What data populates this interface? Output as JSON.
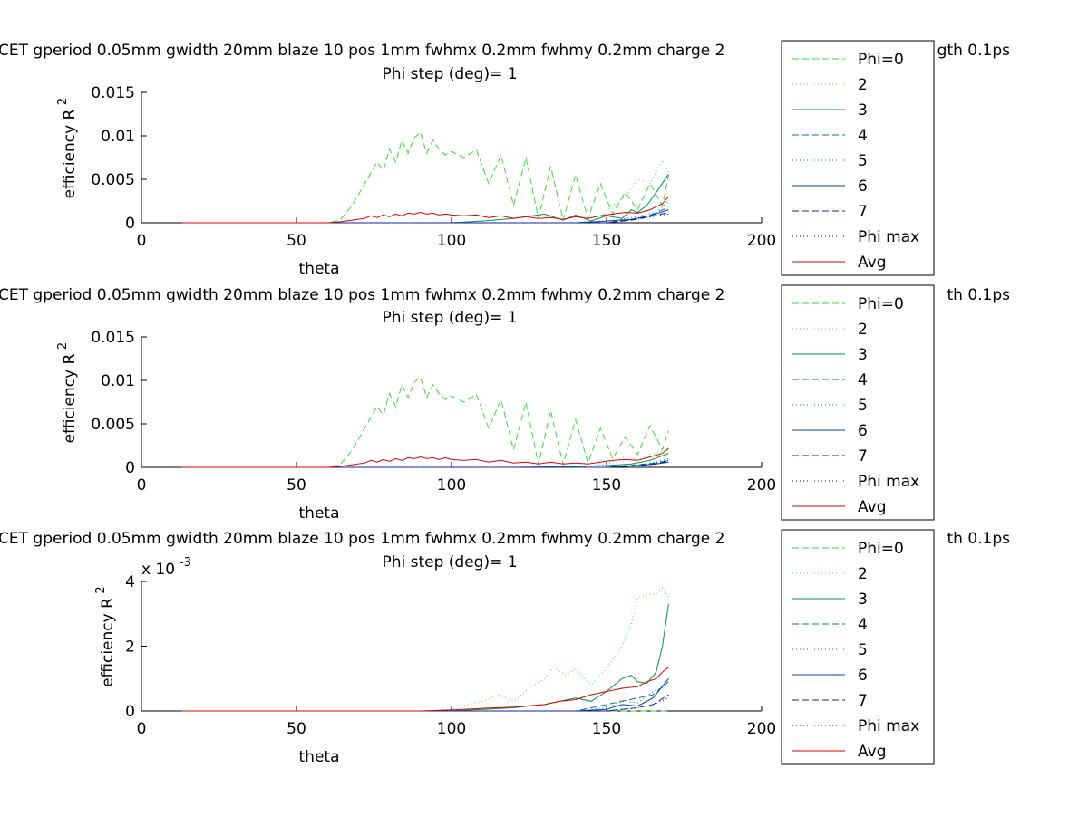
{
  "figure": {
    "background": "#ffffff",
    "title_line1": "CET gperiod 0.05mm gwidth 20mm blaze 10 pos 1mm fwhmx 0.2mm fwhmy 0.2mm charge 2",
    "title_line1_right": "gth 0.1ps",
    "title_line1_right_b": "th 0.1ps",
    "title_line2": "Phi step (deg)= 1"
  },
  "series_styles": [
    {
      "key": "phi0",
      "color": "#33dd33",
      "dash": "7,4"
    },
    {
      "key": "p2",
      "color": "#44dd44",
      "dash": "1,3"
    },
    {
      "key": "p3",
      "color": "#009944",
      "dash": ""
    },
    {
      "key": "p4",
      "color": "#007799",
      "dash": "7,4"
    },
    {
      "key": "p5",
      "color": "#0077aa",
      "dash": "1,3"
    },
    {
      "key": "p6",
      "color": "#0044aa",
      "dash": ""
    },
    {
      "key": "p7",
      "color": "#222299",
      "dash": "7,4"
    },
    {
      "key": "phimax",
      "color": "#0000cc",
      "dash": "1,3"
    },
    {
      "key": "avg",
      "color": "#dd0000",
      "dash": ""
    }
  ],
  "chart_data": [
    {
      "type": "line",
      "title": "CET gperiod 0.05mm gwidth 20mm blaze 10 pos 1mm fwhmx 0.2mm fwhmy 0.2mm charge 2… gth 0.1ps",
      "subtitle": "Phi step (deg)= 1",
      "xlabel": "theta",
      "ylabel": "efficiency R",
      "ylabel_exp": "2",
      "xlim": [
        0,
        200
      ],
      "ylim": [
        0,
        0.015
      ],
      "xticks": [
        0,
        50,
        100,
        150,
        200
      ],
      "xtick_labels": [
        "0",
        "50",
        "100",
        "150",
        "200"
      ],
      "yticks": [
        0,
        0.005,
        0.01,
        0.015
      ],
      "ytick_labels": [
        "0",
        "0.005",
        "0.01",
        "0.015"
      ],
      "y_multiplier": "",
      "grid": false,
      "legend_position": "right",
      "legend": [
        "Phi=0",
        "2",
        "3",
        "4",
        "5",
        "6",
        "7",
        "Phi max",
        "Avg"
      ],
      "series": [
        {
          "key": "phi0",
          "x": [
            13,
            60,
            64,
            68,
            72,
            76,
            78,
            80,
            82,
            84,
            86,
            88,
            90,
            92,
            94,
            96,
            98,
            100,
            104,
            108,
            112,
            116,
            120,
            124,
            128,
            132,
            136,
            140,
            144,
            148,
            152,
            156,
            160,
            164,
            168,
            170
          ],
          "y": [
            0,
            0,
            0.0003,
            0.002,
            0.0045,
            0.007,
            0.006,
            0.0085,
            0.007,
            0.0095,
            0.008,
            0.0098,
            0.0104,
            0.008,
            0.0095,
            0.0085,
            0.0078,
            0.0082,
            0.0075,
            0.0084,
            0.0045,
            0.0078,
            0.002,
            0.0075,
            0.0005,
            0.0065,
            0.0003,
            0.0055,
            0.0005,
            0.0045,
            0.001,
            0.0035,
            0.0015,
            0.0045,
            0.002,
            0.0055
          ]
        },
        {
          "key": "p2",
          "x": [
            13,
            140,
            148,
            152,
            156,
            160,
            164,
            168,
            170
          ],
          "y": [
            0,
            0,
            0.0005,
            0.002,
            0.003,
            0.005,
            0.0045,
            0.0072,
            0.0058
          ]
        },
        {
          "key": "p3",
          "x": [
            13,
            100,
            110,
            120,
            130,
            136,
            140,
            145,
            150,
            155,
            158,
            160,
            163,
            166,
            170
          ],
          "y": [
            0,
            0,
            0.0002,
            0.0005,
            0.001,
            0.0003,
            0.0009,
            0.0002,
            0.0008,
            0.0005,
            0.0015,
            0.0012,
            0.002,
            0.0035,
            0.0056
          ]
        },
        {
          "key": "p4",
          "x": [
            13,
            150,
            160,
            165,
            170
          ],
          "y": [
            0,
            0,
            0.0005,
            0.001,
            0.0018
          ]
        },
        {
          "key": "p5",
          "x": [
            13,
            145,
            155,
            162,
            166,
            170
          ],
          "y": [
            0,
            0,
            0.0004,
            0.0009,
            0.0012,
            0.0025
          ]
        },
        {
          "key": "p6",
          "x": [
            13,
            140,
            150,
            158,
            164,
            170
          ],
          "y": [
            0,
            0,
            0.0002,
            0.0004,
            0.0008,
            0.0015
          ]
        },
        {
          "key": "p7",
          "x": [
            13,
            150,
            158,
            164,
            170
          ],
          "y": [
            0,
            0,
            0.0003,
            0.0007,
            0.0012
          ]
        },
        {
          "key": "phimax",
          "x": [
            13,
            150,
            160,
            166,
            170
          ],
          "y": [
            0,
            0,
            0.0004,
            0.0008,
            0.001
          ]
        },
        {
          "key": "avg",
          "x": [
            13,
            60,
            64,
            68,
            72,
            74,
            76,
            78,
            80,
            82,
            84,
            86,
            88,
            90,
            92,
            94,
            96,
            98,
            100,
            104,
            108,
            112,
            116,
            120,
            124,
            128,
            132,
            136,
            140,
            144,
            148,
            152,
            156,
            160,
            164,
            168,
            170
          ],
          "y": [
            0,
            0,
            0.0001,
            0.0003,
            0.0005,
            0.0008,
            0.0006,
            0.0009,
            0.0007,
            0.001,
            0.0008,
            0.0011,
            0.001,
            0.0012,
            0.001,
            0.0011,
            0.0009,
            0.001,
            0.0009,
            0.0008,
            0.0009,
            0.0006,
            0.0008,
            0.0005,
            0.0007,
            0.0005,
            0.0006,
            0.0004,
            0.0007,
            0.0005,
            0.0008,
            0.001,
            0.0012,
            0.0011,
            0.0015,
            0.0022,
            0.003
          ]
        }
      ]
    },
    {
      "type": "line",
      "title": "CET gperiod 0.05mm gwidth 20mm blaze 10 pos 1mm fwhmx 0.2mm fwhmy 0.2mm charge 2… th 0.1ps",
      "subtitle": "Phi step (deg)= 1",
      "xlabel": "theta",
      "ylabel": "efficiency R",
      "ylabel_exp": "2",
      "xlim": [
        0,
        200
      ],
      "ylim": [
        0,
        0.015
      ],
      "xticks": [
        0,
        50,
        100,
        150,
        200
      ],
      "xtick_labels": [
        "0",
        "50",
        "100",
        "150",
        "200"
      ],
      "yticks": [
        0,
        0.005,
        0.01,
        0.015
      ],
      "ytick_labels": [
        "0",
        "0.005",
        "0.01",
        "0.015"
      ],
      "y_multiplier": "",
      "grid": false,
      "legend_position": "right",
      "legend": [
        "Phi=0",
        "2",
        "3",
        "4",
        "5",
        "6",
        "7",
        "Phi max",
        "Avg"
      ],
      "series": [
        {
          "key": "phi0",
          "x": [
            13,
            60,
            64,
            68,
            72,
            76,
            78,
            80,
            82,
            84,
            86,
            88,
            90,
            92,
            94,
            96,
            98,
            100,
            104,
            108,
            112,
            116,
            120,
            124,
            128,
            132,
            136,
            140,
            144,
            148,
            152,
            156,
            160,
            164,
            168,
            170
          ],
          "y": [
            0,
            0,
            0.0003,
            0.002,
            0.0045,
            0.007,
            0.006,
            0.0085,
            0.007,
            0.0095,
            0.008,
            0.0098,
            0.0104,
            0.008,
            0.0095,
            0.0085,
            0.0078,
            0.0082,
            0.0075,
            0.0084,
            0.0045,
            0.0078,
            0.002,
            0.0075,
            0.0003,
            0.0065,
            0.0003,
            0.0055,
            0.0005,
            0.0045,
            0.001,
            0.0035,
            0.0015,
            0.0048,
            0.002,
            0.0042
          ]
        },
        {
          "key": "p2",
          "x": [
            13,
            140,
            150,
            156,
            160,
            164,
            168,
            170
          ],
          "y": [
            0,
            0,
            0.0004,
            0.0012,
            0.0008,
            0.0015,
            0.0018,
            0.002
          ]
        },
        {
          "key": "p3",
          "x": [
            13,
            120,
            140,
            150,
            158,
            164,
            170
          ],
          "y": [
            0,
            0,
            0.0001,
            0.0002,
            0.0004,
            0.0008,
            0.0016
          ]
        },
        {
          "key": "p4",
          "x": [
            13,
            150,
            160,
            166,
            170
          ],
          "y": [
            0,
            0,
            0.0003,
            0.0005,
            0.0008
          ]
        },
        {
          "key": "p5",
          "x": [
            13,
            150,
            160,
            166,
            170
          ],
          "y": [
            0,
            0,
            0.0003,
            0.0006,
            0.001
          ]
        },
        {
          "key": "p6",
          "x": [
            13,
            150,
            160,
            166,
            170
          ],
          "y": [
            0,
            0,
            0.0002,
            0.0004,
            0.0006
          ]
        },
        {
          "key": "p7",
          "x": [
            13,
            150,
            160,
            166,
            170
          ],
          "y": [
            0,
            0,
            0.0002,
            0.0004,
            0.0007
          ]
        },
        {
          "key": "phimax",
          "x": [
            13,
            150,
            160,
            166,
            170
          ],
          "y": [
            0,
            0,
            0.0002,
            0.0005,
            0.0008
          ]
        },
        {
          "key": "avg",
          "x": [
            13,
            60,
            64,
            68,
            72,
            74,
            76,
            78,
            80,
            82,
            84,
            86,
            88,
            90,
            92,
            94,
            96,
            98,
            100,
            104,
            108,
            112,
            116,
            120,
            124,
            128,
            132,
            136,
            140,
            144,
            148,
            152,
            156,
            160,
            164,
            168,
            170
          ],
          "y": [
            0,
            0,
            0.0001,
            0.0003,
            0.0005,
            0.0008,
            0.0006,
            0.0009,
            0.0007,
            0.001,
            0.0008,
            0.0011,
            0.001,
            0.0012,
            0.001,
            0.0011,
            0.0009,
            0.0011,
            0.0009,
            0.0008,
            0.0009,
            0.0006,
            0.0008,
            0.0005,
            0.0006,
            0.0004,
            0.0006,
            0.0004,
            0.0005,
            0.0004,
            0.0006,
            0.0008,
            0.0009,
            0.0008,
            0.0012,
            0.0016,
            0.0022
          ]
        }
      ]
    },
    {
      "type": "line",
      "title": "CET gperiod 0.05mm gwidth 20mm blaze 10 pos 1mm fwhmx 0.2mm fwhmy 0.2mm charge 2… th 0.1ps",
      "subtitle": "Phi step (deg)= 1",
      "xlabel": "theta",
      "ylabel": "efficiency R",
      "ylabel_exp": "2",
      "xlim": [
        0,
        200
      ],
      "ylim": [
        0,
        4
      ],
      "xticks": [
        0,
        50,
        100,
        150,
        200
      ],
      "xtick_labels": [
        "0",
        "50",
        "100",
        "150",
        "200"
      ],
      "yticks": [
        0,
        2,
        4
      ],
      "ytick_labels": [
        "0",
        "2",
        "4"
      ],
      "y_multiplier": "x 10",
      "y_multiplier_exp": "-3",
      "grid": false,
      "legend_position": "right",
      "legend": [
        "Phi=0",
        "2",
        "3",
        "4",
        "5",
        "6",
        "7",
        "Phi max",
        "Avg"
      ],
      "series": [
        {
          "key": "phi0",
          "x": [
            13,
            170
          ],
          "y": [
            0,
            0
          ]
        },
        {
          "key": "p2",
          "x": [
            13,
            90,
            100,
            105,
            110,
            115,
            120,
            125,
            130,
            133,
            137,
            140,
            145,
            150,
            155,
            158,
            160,
            163,
            166,
            168,
            170
          ],
          "y": [
            0,
            0,
            0.05,
            0.2,
            0.3,
            0.5,
            0.3,
            0.7,
            1.0,
            1.35,
            1.1,
            1.3,
            0.8,
            1.3,
            2.0,
            2.7,
            3.5,
            3.6,
            3.6,
            3.8,
            3.5
          ]
        },
        {
          "key": "p3",
          "x": [
            13,
            100,
            110,
            120,
            130,
            135,
            140,
            145,
            150,
            155,
            158,
            160,
            163,
            166,
            168,
            170
          ],
          "y": [
            0,
            0,
            0.05,
            0.1,
            0.2,
            0.3,
            0.4,
            0.3,
            0.6,
            1.0,
            1.1,
            0.9,
            0.85,
            1.2,
            2.0,
            3.3
          ]
        },
        {
          "key": "p4",
          "x": [
            13,
            140,
            150,
            155,
            160,
            165,
            170
          ],
          "y": [
            0,
            0,
            0.2,
            0.3,
            0.4,
            0.5,
            0.9
          ]
        },
        {
          "key": "p5",
          "x": [
            13,
            140,
            150,
            155,
            160,
            165,
            170
          ],
          "y": [
            0,
            0,
            0.1,
            0.3,
            0.25,
            0.6,
            0.8
          ]
        },
        {
          "key": "p6",
          "x": [
            13,
            140,
            150,
            155,
            160,
            165,
            170
          ],
          "y": [
            0,
            0,
            0.05,
            0.2,
            0.15,
            0.4,
            1.0
          ]
        },
        {
          "key": "p7",
          "x": [
            13,
            150,
            160,
            165,
            170
          ],
          "y": [
            0,
            0,
            0.1,
            0.2,
            0.5
          ]
        },
        {
          "key": "phimax",
          "x": [
            13,
            150,
            160,
            165,
            170
          ],
          "y": [
            0,
            0,
            0.1,
            0.2,
            0.4
          ]
        },
        {
          "key": "avg",
          "x": [
            13,
            90,
            100,
            110,
            120,
            130,
            135,
            140,
            145,
            150,
            155,
            160,
            163,
            166,
            168,
            170
          ],
          "y": [
            0,
            0,
            0.03,
            0.08,
            0.12,
            0.2,
            0.3,
            0.35,
            0.5,
            0.6,
            0.7,
            0.75,
            0.9,
            1.0,
            1.2,
            1.35
          ]
        }
      ]
    }
  ],
  "layout_hint": "three stacked subplots with legends"
}
